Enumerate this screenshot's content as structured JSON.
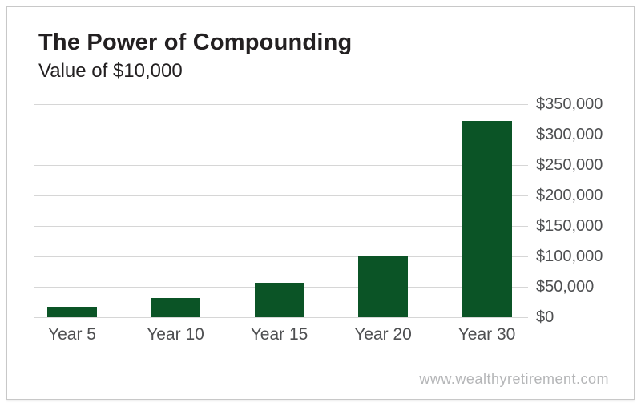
{
  "header": {
    "title": "The Power of Compounding",
    "subtitle": "Value of $10,000"
  },
  "footer": {
    "website": "www.wealthyretirement.com"
  },
  "colors": {
    "bar": "#0B5426",
    "grid": "#D6D6D6",
    "ink": "#232021",
    "axis": "#4E4F51",
    "muted": "#B5B6B8",
    "border": "#C8C8C8"
  },
  "chart_data": {
    "type": "bar",
    "title": "The Power of Compounding",
    "subtitle": "Value of $10,000",
    "categories": [
      "Year 5",
      "Year 10",
      "Year 15",
      "Year 20",
      "Year 30"
    ],
    "values": [
      17000,
      31000,
      56000,
      100000,
      322000
    ],
    "xlabel": "",
    "ylabel": "",
    "ylim": [
      0,
      350000
    ],
    "ytick_values": [
      0,
      50000,
      100000,
      150000,
      200000,
      250000,
      300000,
      350000
    ],
    "ytick_labels": [
      "$0",
      "$50,000",
      "$100,000",
      "$150,000",
      "$200,000",
      "$250,000",
      "$300,000",
      "$350,000"
    ],
    "grid": "horizontal",
    "y_axis_side": "right",
    "legend": "none",
    "bar_color": "#0B5426",
    "watermark": "www.wealthyretirement.com"
  }
}
